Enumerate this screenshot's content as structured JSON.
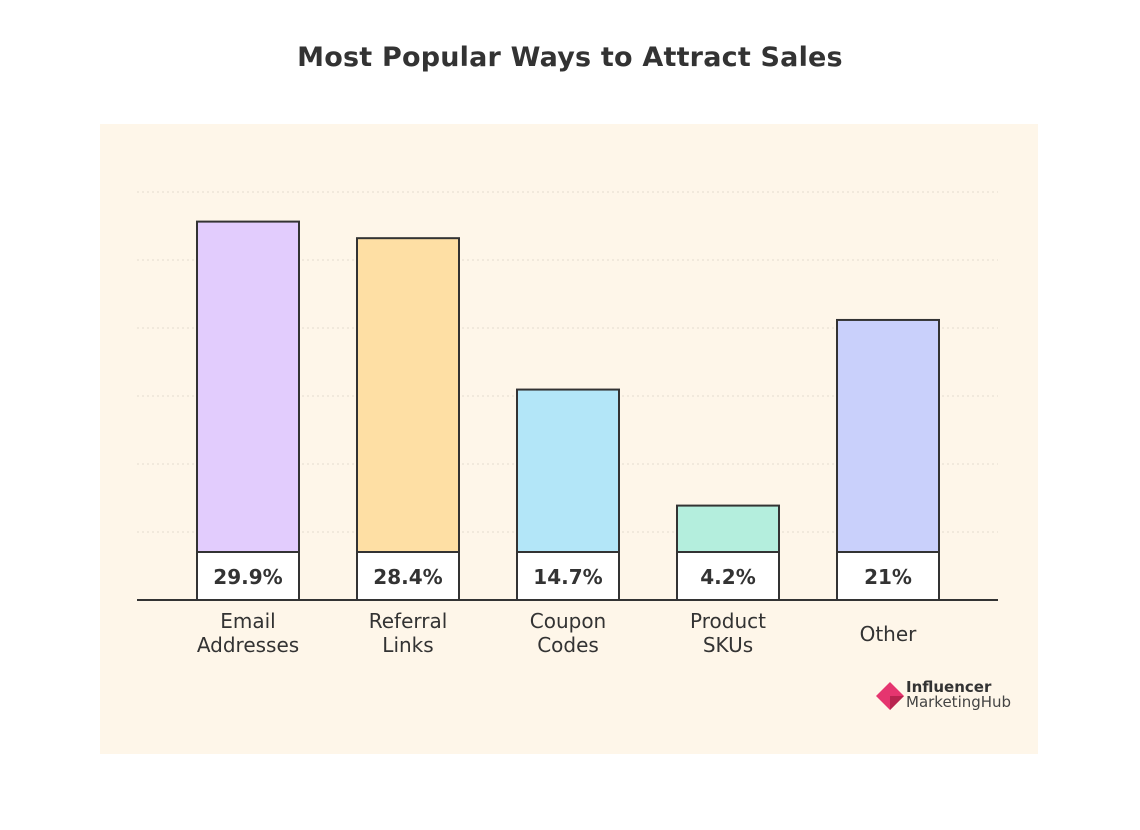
{
  "chart_data": {
    "type": "bar",
    "title": "Most Popular Ways to Attract Sales",
    "categories": [
      [
        "Email",
        "Addresses"
      ],
      [
        "Referral",
        "Links"
      ],
      [
        "Coupon",
        "Codes"
      ],
      [
        "Product",
        "SKUs"
      ],
      [
        "Other"
      ]
    ],
    "values": [
      29.9,
      28.4,
      14.7,
      4.2,
      21
    ],
    "value_labels": [
      "29.9%",
      "28.4%",
      "14.7%",
      "4.2%",
      "21%"
    ],
    "colors": [
      "#e2ccfd",
      "#fedfa4",
      "#b3e6f8",
      "#b4eedd",
      "#c9d0fb"
    ],
    "grid": true,
    "xlabel": "",
    "ylabel": ""
  },
  "branding": {
    "line1": "Influencer",
    "line2": "MarketingHub",
    "color": "#e5356f"
  }
}
